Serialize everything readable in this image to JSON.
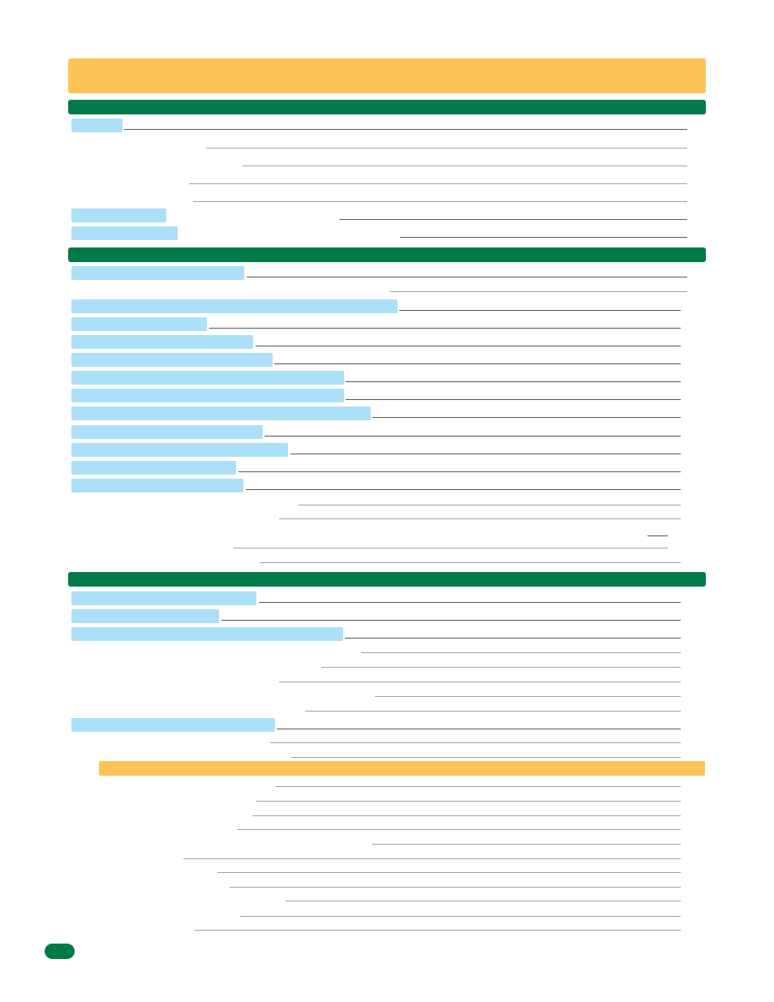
{
  "document": {
    "title": "",
    "page_number": "",
    "colors": {
      "banner": "#fcc457",
      "section_bar": "#007a49",
      "entry_highlight": "#abe0f8",
      "leader_line": "#555555"
    }
  },
  "sections": [
    {
      "heading": "",
      "entries": [
        {
          "label": ""
        },
        {
          "label": ""
        },
        {
          "label": ""
        },
        {
          "label": ""
        },
        {
          "label": ""
        },
        {
          "label": ""
        },
        {
          "label": ""
        }
      ]
    },
    {
      "heading": "",
      "entries": [
        {
          "label": ""
        },
        {
          "label": ""
        },
        {
          "label": ""
        },
        {
          "label": ""
        },
        {
          "label": ""
        },
        {
          "label": ""
        },
        {
          "label": ""
        },
        {
          "label": ""
        },
        {
          "label": ""
        },
        {
          "label": ""
        },
        {
          "label": ""
        },
        {
          "label": ""
        },
        {
          "label": ""
        },
        {
          "label": ""
        },
        {
          "label": ""
        },
        {
          "label": ""
        },
        {
          "label": ""
        },
        {
          "label": ""
        }
      ]
    },
    {
      "heading": "",
      "entries": [
        {
          "label": ""
        },
        {
          "label": ""
        },
        {
          "label": ""
        },
        {
          "label": ""
        },
        {
          "label": ""
        },
        {
          "label": ""
        },
        {
          "label": ""
        },
        {
          "label": ""
        },
        {
          "label": ""
        },
        {
          "label": ""
        },
        {
          "label": ""
        }
      ],
      "subsection": {
        "heading": "",
        "entries": [
          {
            "label": ""
          },
          {
            "label": ""
          },
          {
            "label": ""
          },
          {
            "label": ""
          },
          {
            "label": ""
          },
          {
            "label": ""
          },
          {
            "label": ""
          },
          {
            "label": ""
          },
          {
            "label": ""
          },
          {
            "label": ""
          },
          {
            "label": ""
          }
        ]
      }
    }
  ]
}
